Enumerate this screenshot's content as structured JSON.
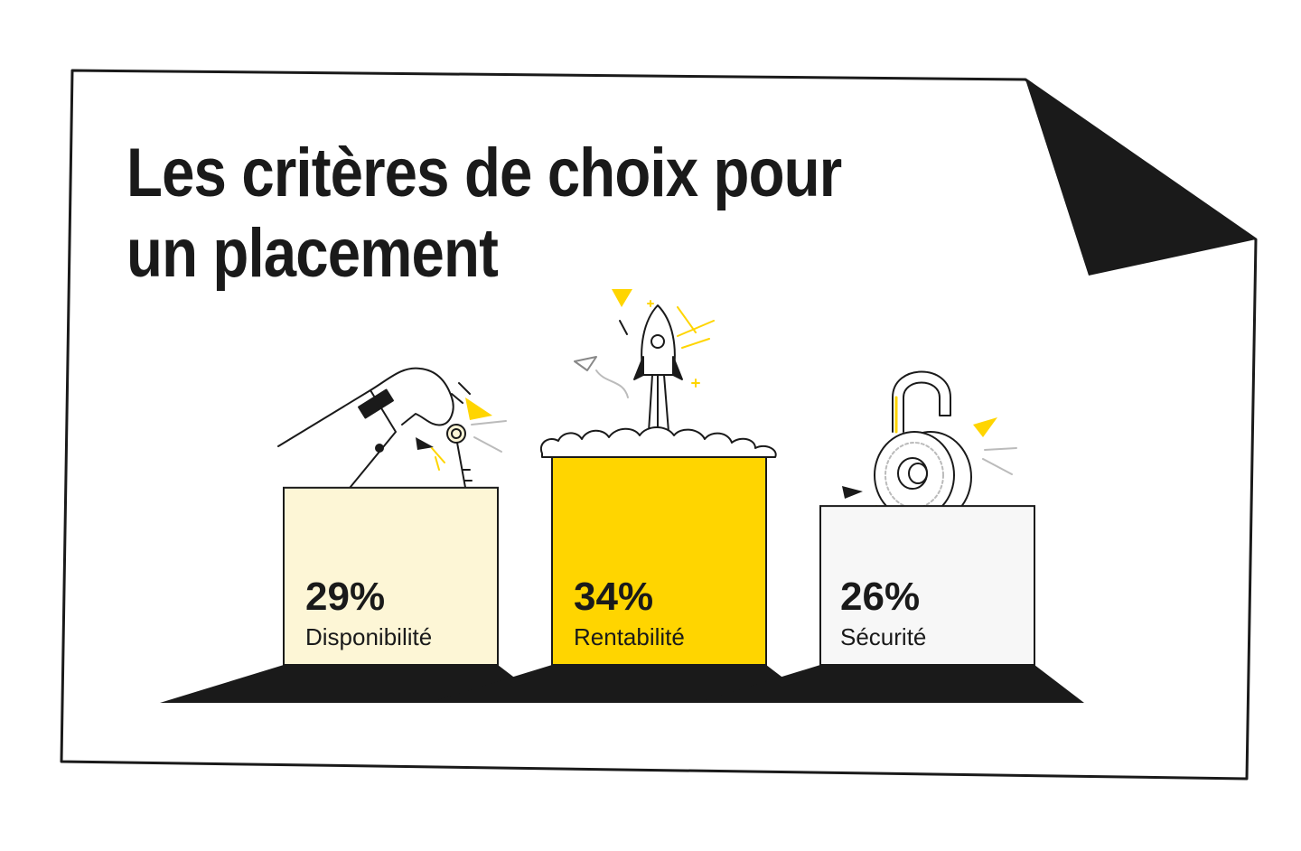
{
  "title": {
    "line1": "Les critères de choix pour",
    "line2": "un placement"
  },
  "colors": {
    "ink": "#1a1a1a",
    "accent_yellow": "#FFD500",
    "pale_yellow": "#FDF6D6",
    "pale_grey": "#F7F7F7"
  },
  "icons": [
    "hand-key-icon",
    "rocket-icon",
    "padlock-icon"
  ],
  "chart_data": {
    "type": "bar",
    "categories": [
      "Disponibilité",
      "Rentabilité",
      "Sécurité"
    ],
    "values": [
      29,
      34,
      26
    ],
    "value_labels": [
      "29%",
      "34%",
      "26%"
    ],
    "unit": "%",
    "bar_colors": [
      "#FDF6D6",
      "#FFD500",
      "#F7F7F7"
    ],
    "title": "Les critères de choix pour un placement",
    "ylim": [
      0,
      34
    ],
    "grid": false,
    "legend": "none"
  }
}
